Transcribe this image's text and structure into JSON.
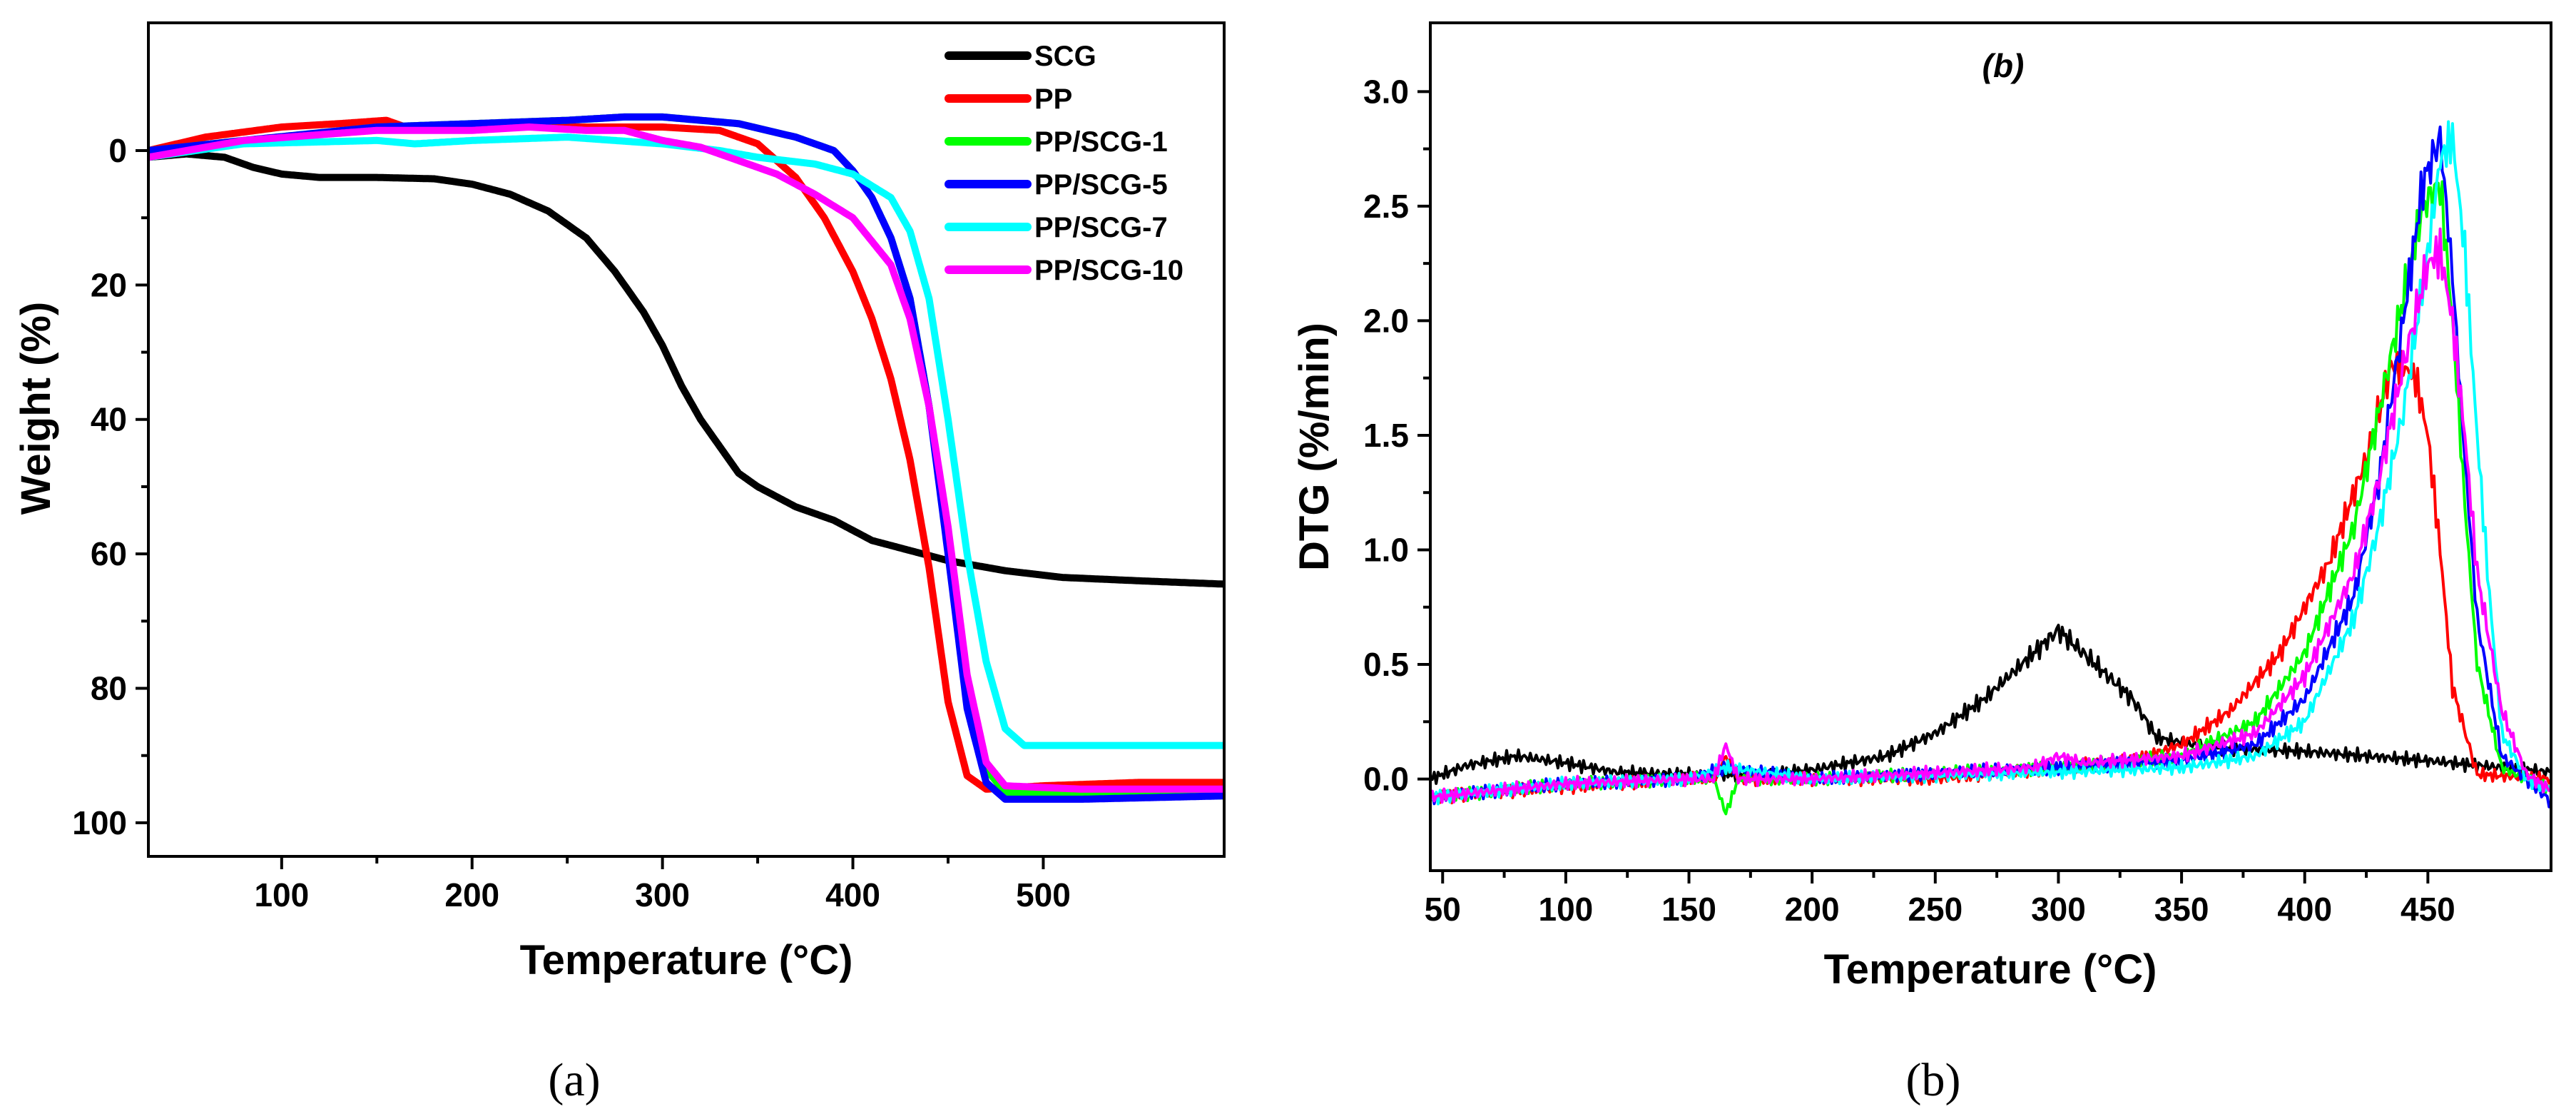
{
  "figure": {
    "captions": [
      "(a)",
      "(b)"
    ]
  },
  "chart_data": [
    {
      "type": "line",
      "title": "",
      "xlabel": "Temperature (°C)",
      "ylabel": "Weight (%)",
      "xlim": [
        30,
        595
      ],
      "ylim": [
        -19,
        105
      ],
      "y_inverted": true,
      "x_ticks": [
        100,
        200,
        300,
        400,
        500
      ],
      "y_ticks": [
        0,
        20,
        40,
        60,
        80,
        100
      ],
      "grid": false,
      "legend_position": "top-right",
      "series": [
        {
          "name": "SCG",
          "color": "#000000",
          "x": [
            30,
            50,
            70,
            85,
            100,
            120,
            150,
            180,
            200,
            220,
            240,
            260,
            275,
            290,
            300,
            310,
            320,
            330,
            340,
            350,
            370,
            390,
            410,
            430,
            450,
            480,
            510,
            550,
            595
          ],
          "y": [
            1,
            0.5,
            1,
            2.5,
            3.5,
            4,
            4,
            4.2,
            5,
            6.5,
            9,
            13,
            18,
            24,
            29,
            35,
            40,
            44,
            48,
            50,
            53,
            55,
            58,
            59.5,
            61,
            62.5,
            63.5,
            64,
            64.5
          ]
        },
        {
          "name": "PP",
          "color": "#ff0000",
          "x": [
            30,
            60,
            100,
            130,
            155,
            165,
            200,
            250,
            300,
            330,
            350,
            370,
            385,
            400,
            410,
            420,
            430,
            440,
            450,
            460,
            470,
            500,
            550,
            595
          ],
          "y": [
            0,
            -2,
            -3.5,
            -4,
            -4.5,
            -3.5,
            -3.5,
            -3.5,
            -3.5,
            -3,
            -1,
            4,
            10,
            18,
            25,
            34,
            46,
            62,
            82,
            93,
            95,
            94.5,
            94,
            94
          ]
        },
        {
          "name": "PP/SCG-1",
          "color": "#00ff00",
          "x": [
            30,
            80,
            150,
            200,
            250,
            280,
            300,
            340,
            370,
            390,
            400,
            410,
            420,
            430,
            440,
            450,
            460,
            470,
            480,
            520,
            595
          ],
          "y": [
            0,
            -1.5,
            -3.5,
            -4,
            -4.5,
            -5,
            -5,
            -4,
            -2,
            0,
            3,
            7,
            13,
            22,
            38,
            58,
            80,
            92,
            95.5,
            96,
            96
          ]
        },
        {
          "name": "PP/SCG-5",
          "color": "#0000ff",
          "x": [
            30,
            80,
            150,
            200,
            250,
            280,
            300,
            340,
            370,
            390,
            400,
            410,
            420,
            430,
            440,
            450,
            460,
            470,
            480,
            520,
            595
          ],
          "y": [
            0,
            -1.5,
            -3.5,
            -4,
            -4.5,
            -5,
            -5,
            -4,
            -2,
            0,
            3,
            7,
            13,
            22,
            38,
            60,
            83,
            94,
            96.5,
            96.5,
            96
          ]
        },
        {
          "name": "PP/SCG-7",
          "color": "#00ffff",
          "x": [
            30,
            80,
            150,
            170,
            200,
            250,
            300,
            330,
            350,
            380,
            400,
            420,
            430,
            440,
            450,
            460,
            470,
            480,
            490,
            520,
            595
          ],
          "y": [
            1,
            -1,
            -1.5,
            -1,
            -1.5,
            -2,
            -1,
            0,
            1,
            2,
            3.5,
            7,
            12,
            22,
            40,
            60,
            76,
            86,
            88.5,
            88.5,
            88.5
          ]
        },
        {
          "name": "PP/SCG-10",
          "color": "#ff00ff",
          "x": [
            30,
            80,
            150,
            200,
            230,
            260,
            280,
            300,
            320,
            340,
            360,
            380,
            400,
            420,
            430,
            440,
            450,
            460,
            470,
            480,
            520,
            595
          ],
          "y": [
            1,
            -1.5,
            -3,
            -3,
            -3.5,
            -3,
            -3,
            -1.5,
            -0.5,
            1.5,
            3.5,
            6.5,
            10,
            17,
            25,
            38,
            56,
            78,
            91,
            94.5,
            95,
            95
          ]
        }
      ]
    },
    {
      "type": "line",
      "title": "(b)",
      "xlabel": "Temperature (°C)",
      "ylabel": "DTG (%/min)",
      "xlim": [
        45,
        500
      ],
      "ylim": [
        -0.4,
        3.3
      ],
      "x_ticks": [
        50,
        100,
        150,
        200,
        250,
        300,
        350,
        400,
        450
      ],
      "y_ticks": [
        0.0,
        0.5,
        1.0,
        1.5,
        2.0,
        2.5,
        3.0
      ],
      "grid": false,
      "legend_position": "none",
      "series": [
        {
          "name": "SCG",
          "color": "#000000",
          "x": [
            45,
            60,
            80,
            100,
            120,
            150,
            180,
            200,
            230,
            250,
            270,
            290,
            300,
            310,
            320,
            330,
            340,
            360,
            400,
            450,
            500
          ],
          "y": [
            0.0,
            0.06,
            0.1,
            0.07,
            0.03,
            0.02,
            0.02,
            0.04,
            0.1,
            0.2,
            0.35,
            0.55,
            0.65,
            0.55,
            0.45,
            0.35,
            0.18,
            0.14,
            0.12,
            0.08,
            0.03
          ]
        },
        {
          "name": "PP",
          "color": "#ff0000",
          "x": [
            45,
            80,
            150,
            160,
            165,
            170,
            200,
            250,
            300,
            330,
            350,
            370,
            390,
            410,
            425,
            435,
            440,
            445,
            450,
            455,
            460,
            470,
            500
          ],
          "y": [
            -0.08,
            -0.05,
            0.0,
            0.0,
            0.1,
            0.0,
            0.0,
            0.0,
            0.05,
            0.08,
            0.15,
            0.3,
            0.55,
            0.95,
            1.4,
            1.8,
            1.8,
            1.75,
            1.5,
            1.0,
            0.4,
            0.02,
            0.0
          ]
        },
        {
          "name": "PP/SCG-1",
          "color": "#00ff00",
          "x": [
            45,
            100,
            150,
            160,
            165,
            170,
            200,
            300,
            350,
            380,
            400,
            420,
            430,
            440,
            448,
            455,
            460,
            465,
            470,
            480,
            500
          ],
          "y": [
            -0.08,
            -0.02,
            0.0,
            0.0,
            -0.15,
            0.0,
            0.0,
            0.05,
            0.1,
            0.25,
            0.55,
            1.1,
            1.6,
            2.1,
            2.5,
            2.6,
            2.0,
            1.2,
            0.5,
            0.05,
            -0.05
          ]
        },
        {
          "name": "PP/SCG-5",
          "color": "#0000ff",
          "x": [
            45,
            100,
            150,
            165,
            200,
            300,
            350,
            380,
            400,
            420,
            430,
            440,
            448,
            455,
            460,
            465,
            470,
            480,
            490,
            500
          ],
          "y": [
            -0.08,
            -0.02,
            0.0,
            0.05,
            0.0,
            0.05,
            0.08,
            0.15,
            0.35,
            0.8,
            1.3,
            2.0,
            2.6,
            2.8,
            2.2,
            1.4,
            0.7,
            0.1,
            0.0,
            -0.1
          ]
        },
        {
          "name": "PP/SCG-7",
          "color": "#00ffff",
          "x": [
            45,
            100,
            150,
            165,
            200,
            300,
            350,
            380,
            400,
            420,
            430,
            440,
            450,
            455,
            460,
            465,
            470,
            475,
            480,
            490,
            500
          ],
          "y": [
            -0.08,
            -0.02,
            0.0,
            0.05,
            0.0,
            0.03,
            0.05,
            0.1,
            0.25,
            0.7,
            1.1,
            1.6,
            2.3,
            2.7,
            2.8,
            2.3,
            1.5,
            0.8,
            0.2,
            0.0,
            -0.05
          ]
        },
        {
          "name": "PP/SCG-10",
          "color": "#ff00ff",
          "x": [
            45,
            100,
            150,
            160,
            165,
            170,
            200,
            290,
            300,
            310,
            350,
            380,
            400,
            420,
            430,
            440,
            450,
            455,
            460,
            465,
            470,
            480,
            490,
            500
          ],
          "y": [
            -0.08,
            -0.02,
            0.0,
            0.0,
            0.15,
            0.0,
            0.0,
            0.05,
            0.1,
            0.07,
            0.1,
            0.2,
            0.45,
            0.9,
            1.3,
            1.8,
            2.25,
            2.3,
            2.0,
            1.5,
            0.9,
            0.3,
            0.02,
            -0.05
          ]
        }
      ]
    }
  ]
}
